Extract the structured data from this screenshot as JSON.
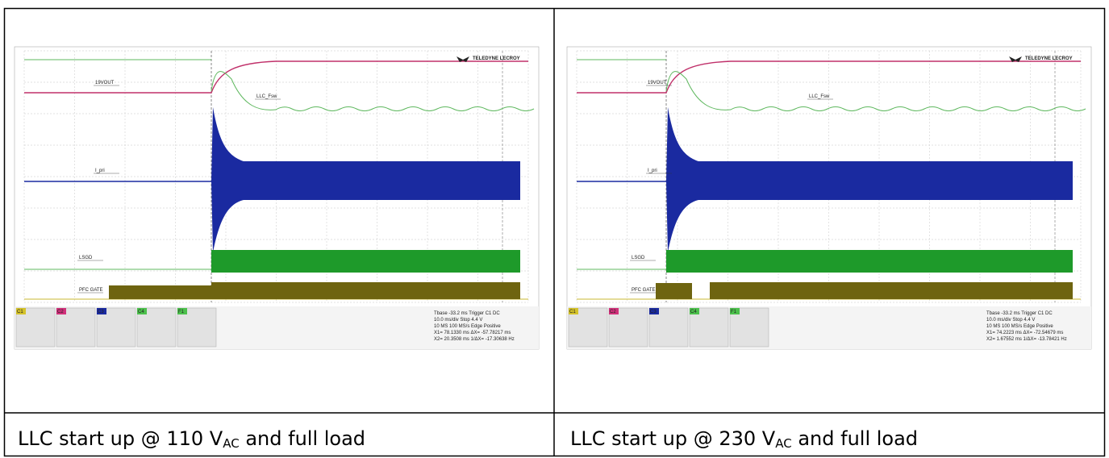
{
  "panels": [
    {
      "scope": {
        "logo": "TELEDYNE LECROY",
        "trace_labels": [
          "19VOUT",
          "LLC_Fsw",
          "I_pri",
          "LSGD",
          "PFC GATE"
        ],
        "channels": [
          "C1",
          "C2",
          "C3",
          "C4",
          "F1"
        ],
        "readout": [
          "Tbase  -33.2 ms  Trigger  C1 DC",
          "10.0 ms/div  Stop  4.4 V",
          "10 MS  100 MS/s  Edge  Positive",
          "X1= 78.1330 ms  ΔX= -57.78217 ms",
          "X2= 20.3508 ms  1/ΔX= -17.30638 Hz"
        ]
      },
      "caption": {
        "text_before": "LLC start up @ 110 V",
        "subscript": "AC",
        "text_after": " and full load"
      }
    },
    {
      "scope": {
        "logo": "TELEDYNE LECROY",
        "trace_labels": [
          "19VOUT",
          "LLC_Fsw",
          "I_pri",
          "LSGD",
          "PFC GATE"
        ],
        "channels": [
          "C1",
          "C2",
          "C3",
          "C4",
          "F1"
        ],
        "readout": [
          "Tbase  -33.2 ms  Trigger  C1 DC",
          "10.0 ms/div  Stop  4.4 V",
          "10 MS  100 MS/s  Edge  Positive",
          "X1= 74.2223 ms  ΔX= -72.54679 ms",
          "X2= 1.67552 ms  1/ΔX= -13.78421 Hz"
        ]
      },
      "caption": {
        "text_before": "LLC start up @ 230 V",
        "subscript": "AC",
        "text_after": " and full load"
      }
    }
  ]
}
